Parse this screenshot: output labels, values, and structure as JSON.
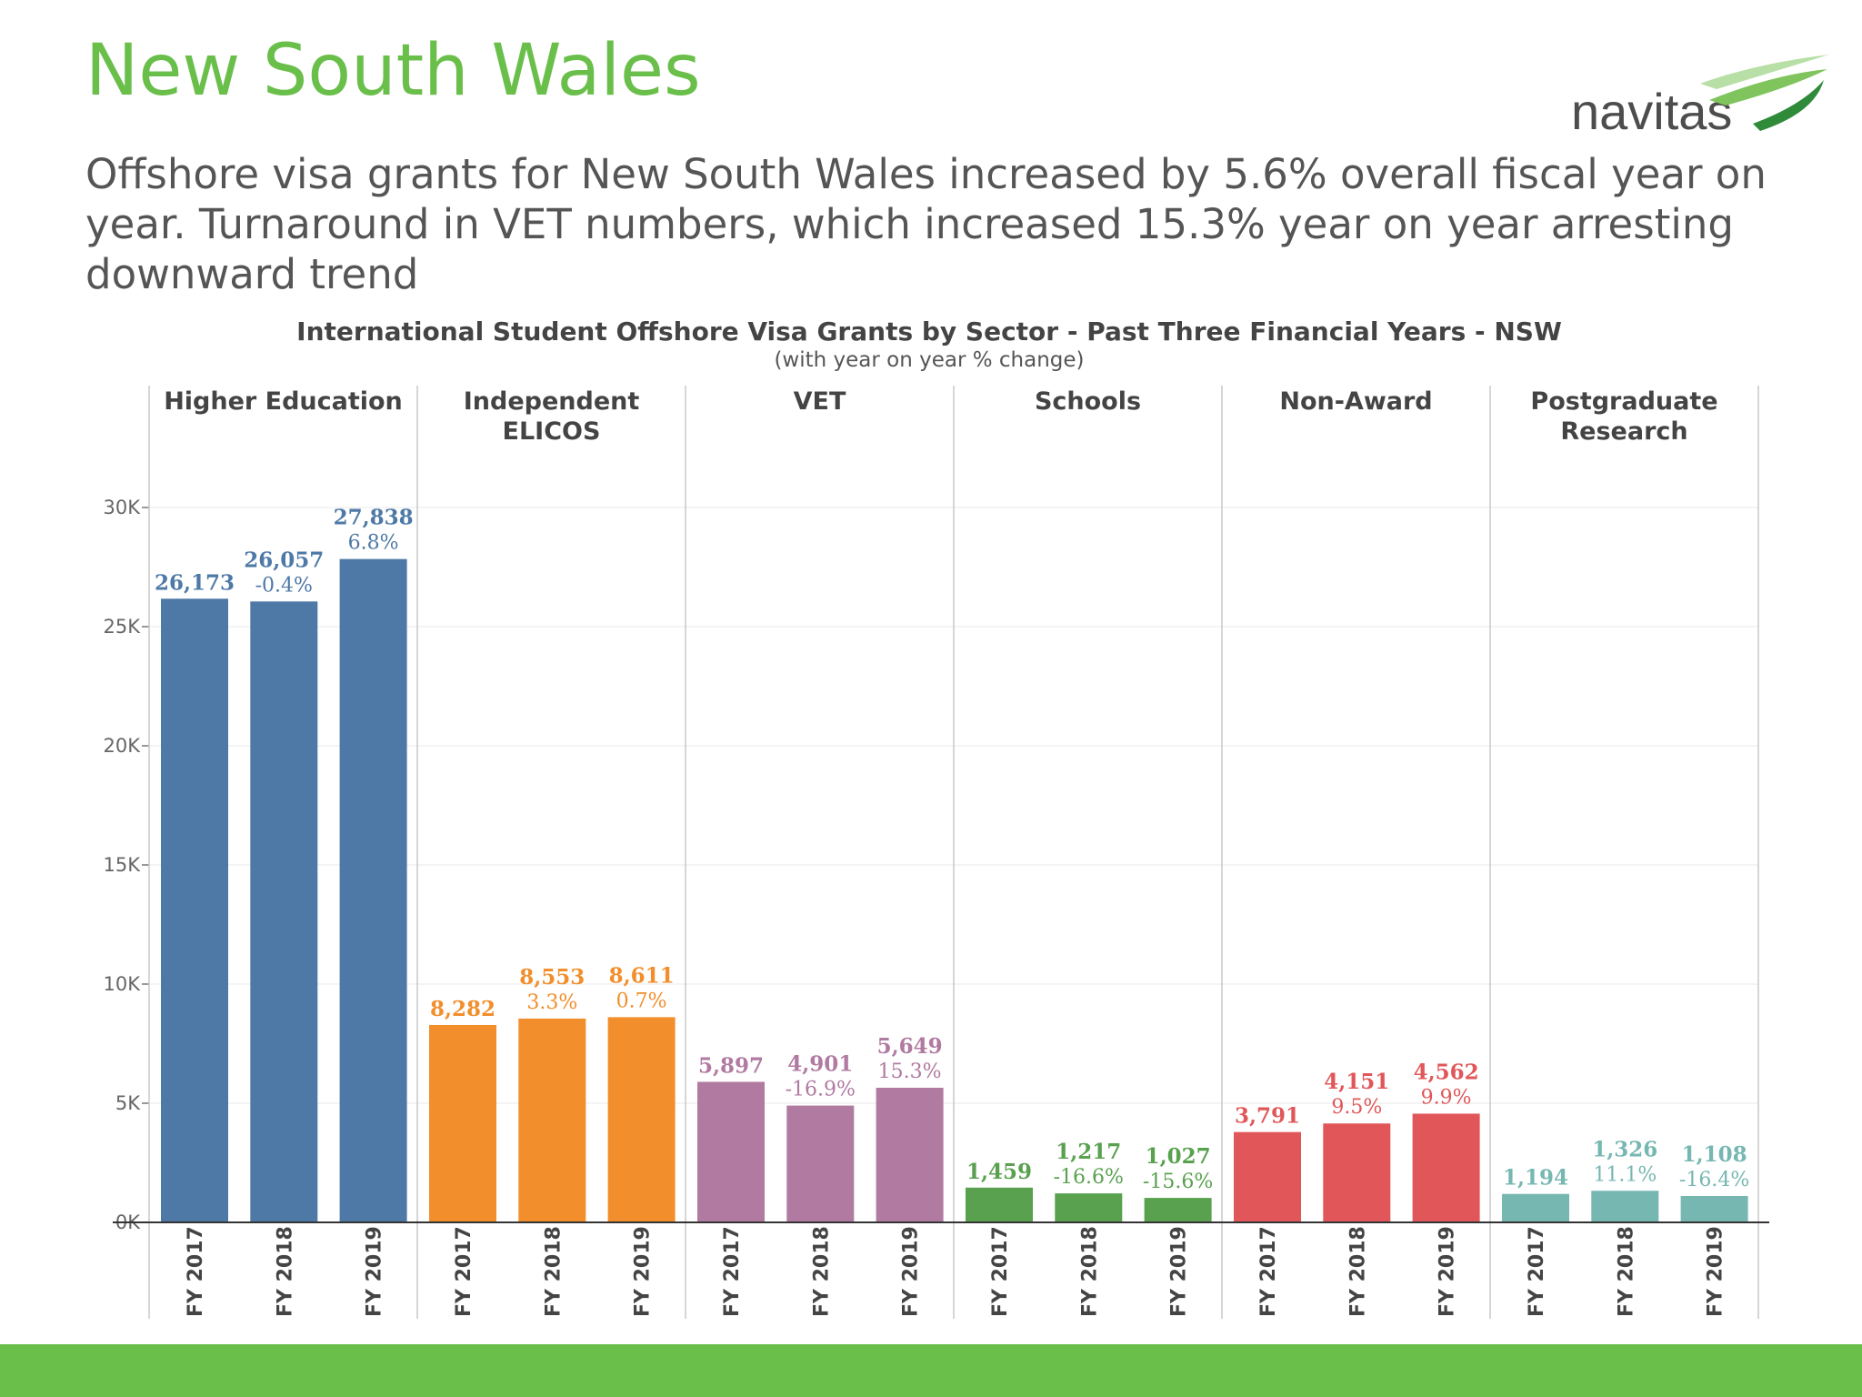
{
  "slide": {
    "title": "New South Wales",
    "subtitle": "Offshore visa grants for New South Wales increased by 5.6% overall fiscal year on year. Turnaround in VET numbers, which increased 15.3% year on year arresting downward trend",
    "logo_text": "navitas",
    "accent_color": "#6abf4b"
  },
  "chart_data": {
    "type": "bar",
    "title": "International Student Offshore Visa Grants by Sector - Past Three Financial Years - NSW",
    "subtitle": "(with year on year % change)",
    "ylim": [
      0,
      30000
    ],
    "yticks": [
      0,
      5000,
      10000,
      15000,
      20000,
      25000,
      30000
    ],
    "ytick_labels": [
      "0K",
      "5K",
      "10K",
      "15K",
      "20K",
      "25K",
      "30K"
    ],
    "grid": true,
    "categories": [
      "FY 2017",
      "FY 2018",
      "FY 2019"
    ],
    "panels": [
      {
        "name": [
          "Higher Education"
        ],
        "color": "#4e79a7",
        "values": [
          26173,
          26057,
          27838
        ],
        "labels": [
          "26,173",
          "26,057",
          "27,838"
        ],
        "changes": [
          "",
          "-0.4%",
          "6.8%"
        ]
      },
      {
        "name": [
          "Independent",
          "ELICOS"
        ],
        "color": "#f28e2b",
        "values": [
          8282,
          8553,
          8611
        ],
        "labels": [
          "8,282",
          "8,553",
          "8,611"
        ],
        "changes": [
          "",
          "3.3%",
          "0.7%"
        ]
      },
      {
        "name": [
          "VET"
        ],
        "color": "#b07aa1",
        "values": [
          5897,
          4901,
          5649
        ],
        "labels": [
          "5,897",
          "4,901",
          "5,649"
        ],
        "changes": [
          "",
          "-16.9%",
          "15.3%"
        ]
      },
      {
        "name": [
          "Schools"
        ],
        "color": "#59a14f",
        "values": [
          1459,
          1217,
          1027
        ],
        "labels": [
          "1,459",
          "1,217",
          "1,027"
        ],
        "changes": [
          "",
          "-16.6%",
          "-15.6%"
        ]
      },
      {
        "name": [
          "Non-Award"
        ],
        "color": "#e15759",
        "values": [
          3791,
          4151,
          4562
        ],
        "labels": [
          "3,791",
          "4,151",
          "4,562"
        ],
        "changes": [
          "",
          "9.5%",
          "9.9%"
        ]
      },
      {
        "name": [
          "Postgraduate",
          "Research"
        ],
        "color": "#76b7b2",
        "values": [
          1194,
          1326,
          1108
        ],
        "labels": [
          "1,194",
          "1,326",
          "1,108"
        ],
        "changes": [
          "",
          "11.1%",
          "-16.4%"
        ]
      }
    ]
  }
}
